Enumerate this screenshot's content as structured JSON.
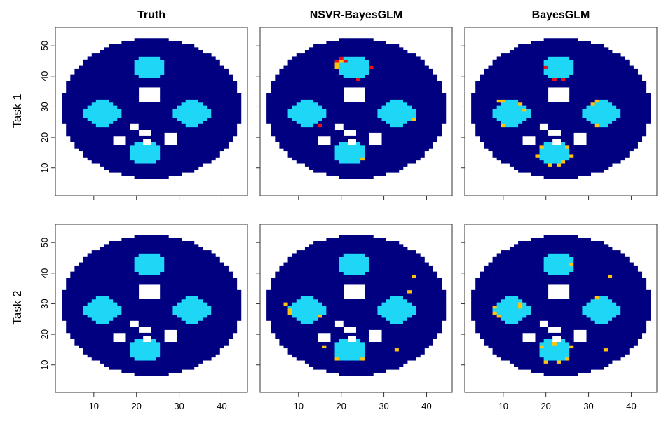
{
  "figure": {
    "column_titles": [
      "Truth",
      "NSVR-BayesGLM",
      "BayesGLM"
    ],
    "row_labels": [
      "Task 1",
      "Task 2"
    ],
    "colors": {
      "background": "#000080",
      "activation": "#1ED6F5",
      "edge_positive": "#FFC20E",
      "edge_negative": "#E8101A",
      "frame": "#333333"
    }
  },
  "chart_data": {
    "type": "heatmap",
    "grid": "off",
    "xlim": [
      1,
      46
    ],
    "ylim": [
      1,
      56
    ],
    "x_ticks": [
      10,
      20,
      30,
      40
    ],
    "y_ticks": [
      10,
      20,
      30,
      40,
      50
    ],
    "x_tick_labels": [
      "10",
      "20",
      "30",
      "40"
    ],
    "y_tick_labels": [
      "10",
      "20",
      "30",
      "40",
      "50"
    ],
    "brain_mask": {
      "shape": "disc",
      "center": [
        23.5,
        29.5
      ],
      "radius": [
        21,
        23
      ],
      "y_min": 7,
      "y_max": 52
    },
    "holes": [
      {
        "x": [
          21,
          25
        ],
        "y": [
          32,
          36
        ]
      },
      {
        "x": [
          19,
          20
        ],
        "y": [
          23,
          24
        ]
      },
      {
        "x": [
          21,
          23
        ],
        "y": [
          21,
          22
        ]
      },
      {
        "x": [
          15,
          17
        ],
        "y": [
          18,
          20
        ]
      },
      {
        "x": [
          22,
          23
        ],
        "y": [
          18,
          19
        ]
      },
      {
        "x": [
          27,
          29
        ],
        "y": [
          18,
          21
        ]
      }
    ],
    "activation_regions": [
      {
        "name": "top",
        "center": [
          23,
          43
        ],
        "radius": 3.8
      },
      {
        "name": "left",
        "center": [
          12,
          28
        ],
        "radius": 4.2
      },
      {
        "name": "right",
        "center": [
          33,
          28
        ],
        "radius": 4.2
      },
      {
        "name": "bottom",
        "center": [
          22,
          15
        ],
        "radius": 3.8
      }
    ],
    "panels": [
      {
        "title": "Truth",
        "row": "Task 1",
        "false_pos": [],
        "false_neg": []
      },
      {
        "title": "NSVR-BayesGLM",
        "row": "Task 1",
        "false_pos": [
          [
            20,
            45
          ],
          [
            19,
            44
          ],
          [
            27,
            43
          ],
          [
            19,
            43
          ],
          [
            24,
            39
          ],
          [
            37,
            26
          ],
          [
            25,
            13
          ]
        ],
        "false_neg": [
          [
            20,
            46
          ],
          [
            19,
            45
          ],
          [
            21,
            45
          ],
          [
            27,
            43
          ],
          [
            24,
            39
          ],
          [
            15,
            24
          ]
        ]
      },
      {
        "title": "BayesGLM",
        "row": "Task 1",
        "false_pos": [
          [
            9,
            32
          ],
          [
            10,
            32
          ],
          [
            14,
            31
          ],
          [
            32,
            32
          ],
          [
            31,
            31
          ],
          [
            15,
            29
          ],
          [
            32,
            24
          ],
          [
            10,
            24
          ],
          [
            19,
            17
          ],
          [
            25,
            17
          ],
          [
            18,
            14
          ],
          [
            26,
            14
          ],
          [
            21,
            11
          ],
          [
            23,
            11
          ],
          [
            24,
            12
          ]
        ],
        "false_neg": [
          [
            20,
            43
          ],
          [
            24,
            39
          ],
          [
            22,
            39
          ]
        ]
      },
      {
        "title": "Truth",
        "row": "Task 2",
        "false_pos": [],
        "false_neg": []
      },
      {
        "title": "NSVR-BayesGLM",
        "row": "Task 2",
        "false_pos": [
          [
            7,
            30
          ],
          [
            8,
            28
          ],
          [
            8,
            27
          ],
          [
            15,
            26
          ],
          [
            37,
            39
          ],
          [
            36,
            34
          ],
          [
            16,
            16
          ],
          [
            33,
            15
          ],
          [
            19,
            12
          ],
          [
            25,
            12
          ]
        ],
        "false_neg": []
      },
      {
        "title": "BayesGLM",
        "row": "Task 2",
        "false_pos": [
          [
            8,
            29
          ],
          [
            8,
            27
          ],
          [
            9,
            26
          ],
          [
            14,
            30
          ],
          [
            14,
            29
          ],
          [
            32,
            32
          ],
          [
            26,
            43
          ],
          [
            35,
            39
          ],
          [
            19,
            16
          ],
          [
            26,
            16
          ],
          [
            34,
            15
          ],
          [
            20,
            11
          ],
          [
            23,
            11
          ],
          [
            25,
            12
          ],
          [
            22,
            17
          ]
        ],
        "false_neg": []
      }
    ]
  }
}
